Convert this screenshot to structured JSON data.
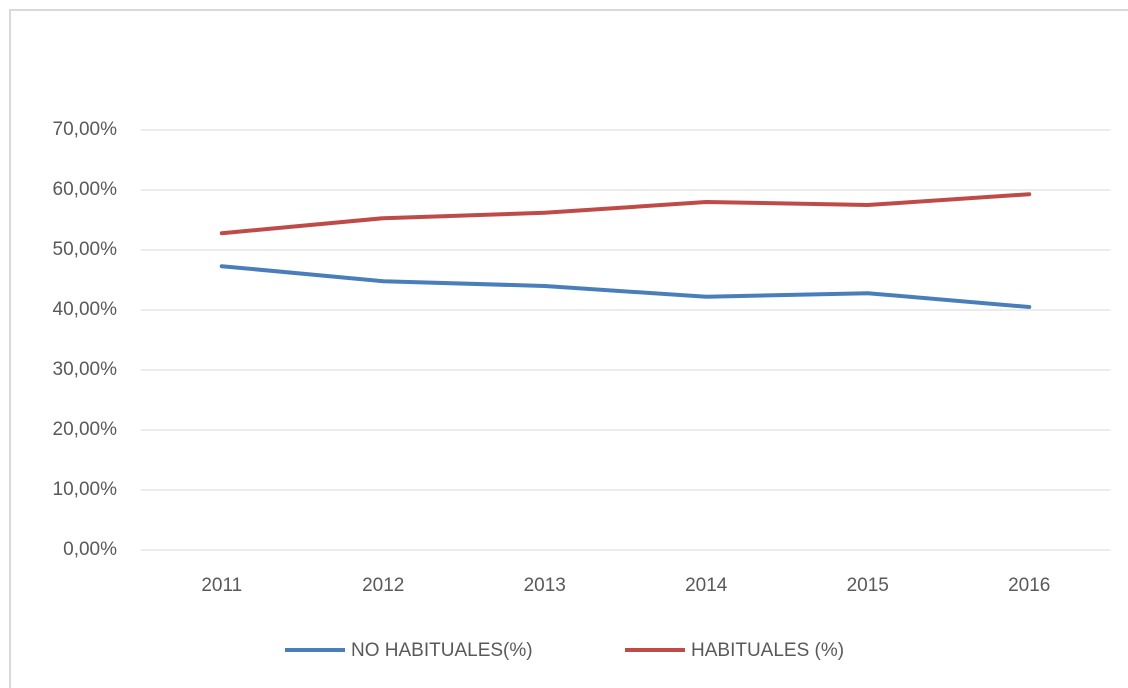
{
  "chart_data": {
    "type": "line",
    "categories": [
      "2011",
      "2012",
      "2013",
      "2014",
      "2015",
      "2016"
    ],
    "series": [
      {
        "name": "NO HABITUALES(%)",
        "color": "#4a7ebb",
        "values": [
          47.3,
          44.8,
          44.0,
          42.2,
          42.8,
          40.5
        ]
      },
      {
        "name": "HABITUALES (%)",
        "color": "#be4b48",
        "values": [
          52.8,
          55.3,
          56.2,
          58.0,
          57.5,
          59.3
        ]
      }
    ],
    "ylim": [
      0,
      70
    ],
    "yticks": [
      {
        "value": 0,
        "label": "0,00%"
      },
      {
        "value": 10,
        "label": "10,00%"
      },
      {
        "value": 20,
        "label": "20,00%"
      },
      {
        "value": 30,
        "label": "30,00%"
      },
      {
        "value": 40,
        "label": "40,00%"
      },
      {
        "value": 50,
        "label": "50,00%"
      },
      {
        "value": 60,
        "label": "60,00%"
      },
      {
        "value": 70,
        "label": "70,00%"
      }
    ],
    "grid": true,
    "legend": "bottom"
  }
}
